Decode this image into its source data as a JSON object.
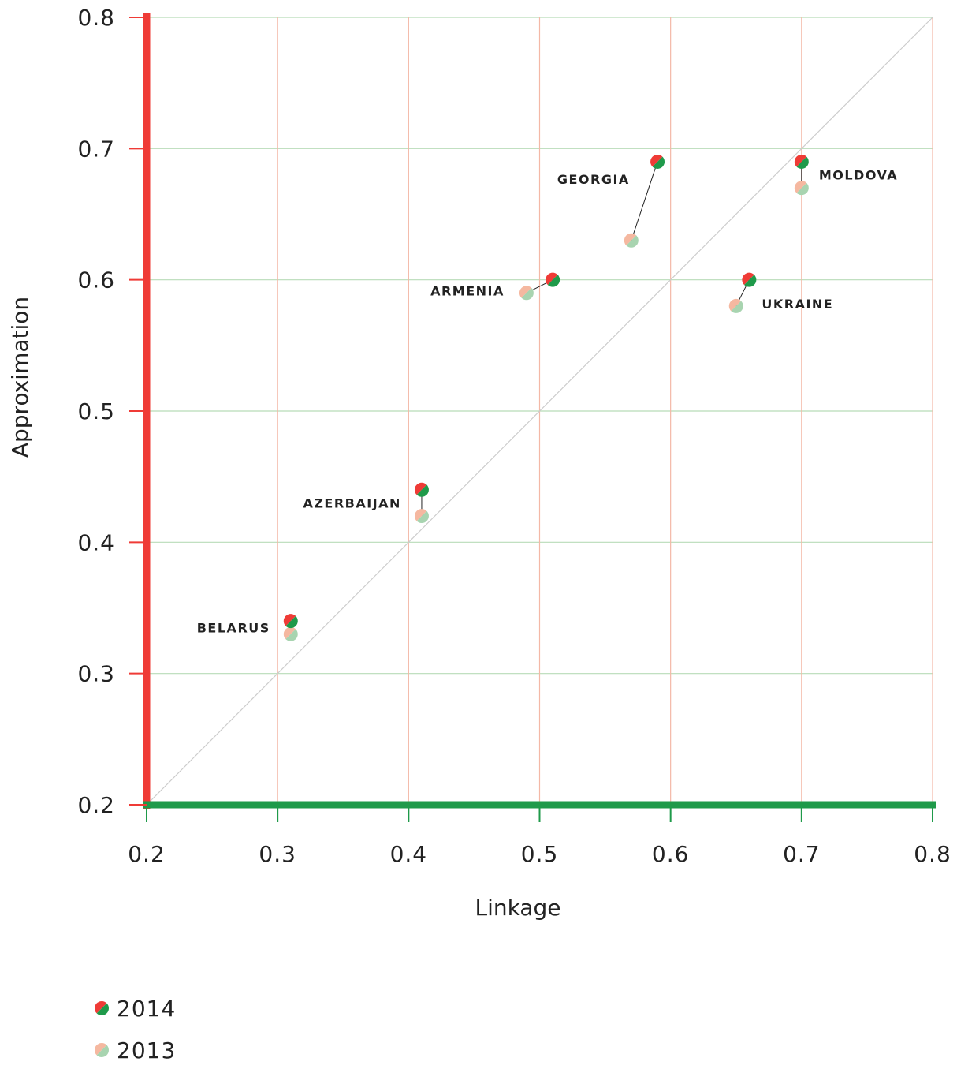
{
  "chart_data": {
    "type": "scatter",
    "xlabel": "Linkage",
    "ylabel": "Approximation",
    "xlim": [
      0.2,
      0.8
    ],
    "ylim": [
      0.2,
      0.8
    ],
    "xticks": [
      "0.2",
      "0.3",
      "0.4",
      "0.5",
      "0.6",
      "0.7",
      "0.8"
    ],
    "yticks": [
      "0.2",
      "0.3",
      "0.4",
      "0.5",
      "0.6",
      "0.7",
      "0.8"
    ],
    "diagonal_reference_line": true,
    "grid": true,
    "legend_position": "bottom-left",
    "series": [
      {
        "name": "2014",
        "colors": [
          "#ef3b36",
          "#1f9a4a"
        ],
        "points": [
          {
            "label": "BELARUS",
            "x": 0.31,
            "y": 0.34
          },
          {
            "label": "AZERBAIJAN",
            "x": 0.41,
            "y": 0.44
          },
          {
            "label": "ARMENIA",
            "x": 0.51,
            "y": 0.6
          },
          {
            "label": "GEORGIA",
            "x": 0.59,
            "y": 0.69
          },
          {
            "label": "UKRAINE",
            "x": 0.66,
            "y": 0.6
          },
          {
            "label": "MOLDOVA",
            "x": 0.7,
            "y": 0.69
          }
        ]
      },
      {
        "name": "2013",
        "colors": [
          "#f5b8a0",
          "#a8d4b0"
        ],
        "points": [
          {
            "label": "BELARUS",
            "x": 0.31,
            "y": 0.33
          },
          {
            "label": "AZERBAIJAN",
            "x": 0.41,
            "y": 0.42
          },
          {
            "label": "ARMENIA",
            "x": 0.49,
            "y": 0.59
          },
          {
            "label": "GEORGIA",
            "x": 0.57,
            "y": 0.63
          },
          {
            "label": "UKRAINE",
            "x": 0.65,
            "y": 0.58
          },
          {
            "label": "MOLDOVA",
            "x": 0.7,
            "y": 0.67
          }
        ]
      }
    ],
    "country_labels": [
      {
        "text": "BELARUS",
        "anchor": "left"
      },
      {
        "text": "AZERBAIJAN",
        "anchor": "left"
      },
      {
        "text": "ARMENIA",
        "anchor": "left"
      },
      {
        "text": "GEORGIA",
        "anchor": "left"
      },
      {
        "text": "UKRAINE",
        "anchor": "right"
      },
      {
        "text": "MOLDOVA",
        "anchor": "right"
      }
    ],
    "colors": {
      "y_axis": "#ef3b36",
      "x_axis": "#1f9a4a",
      "vertical_grid": "#f4b8a6",
      "horizontal_grid": "#b8dcb8",
      "diagonal": "#cccccc"
    }
  }
}
